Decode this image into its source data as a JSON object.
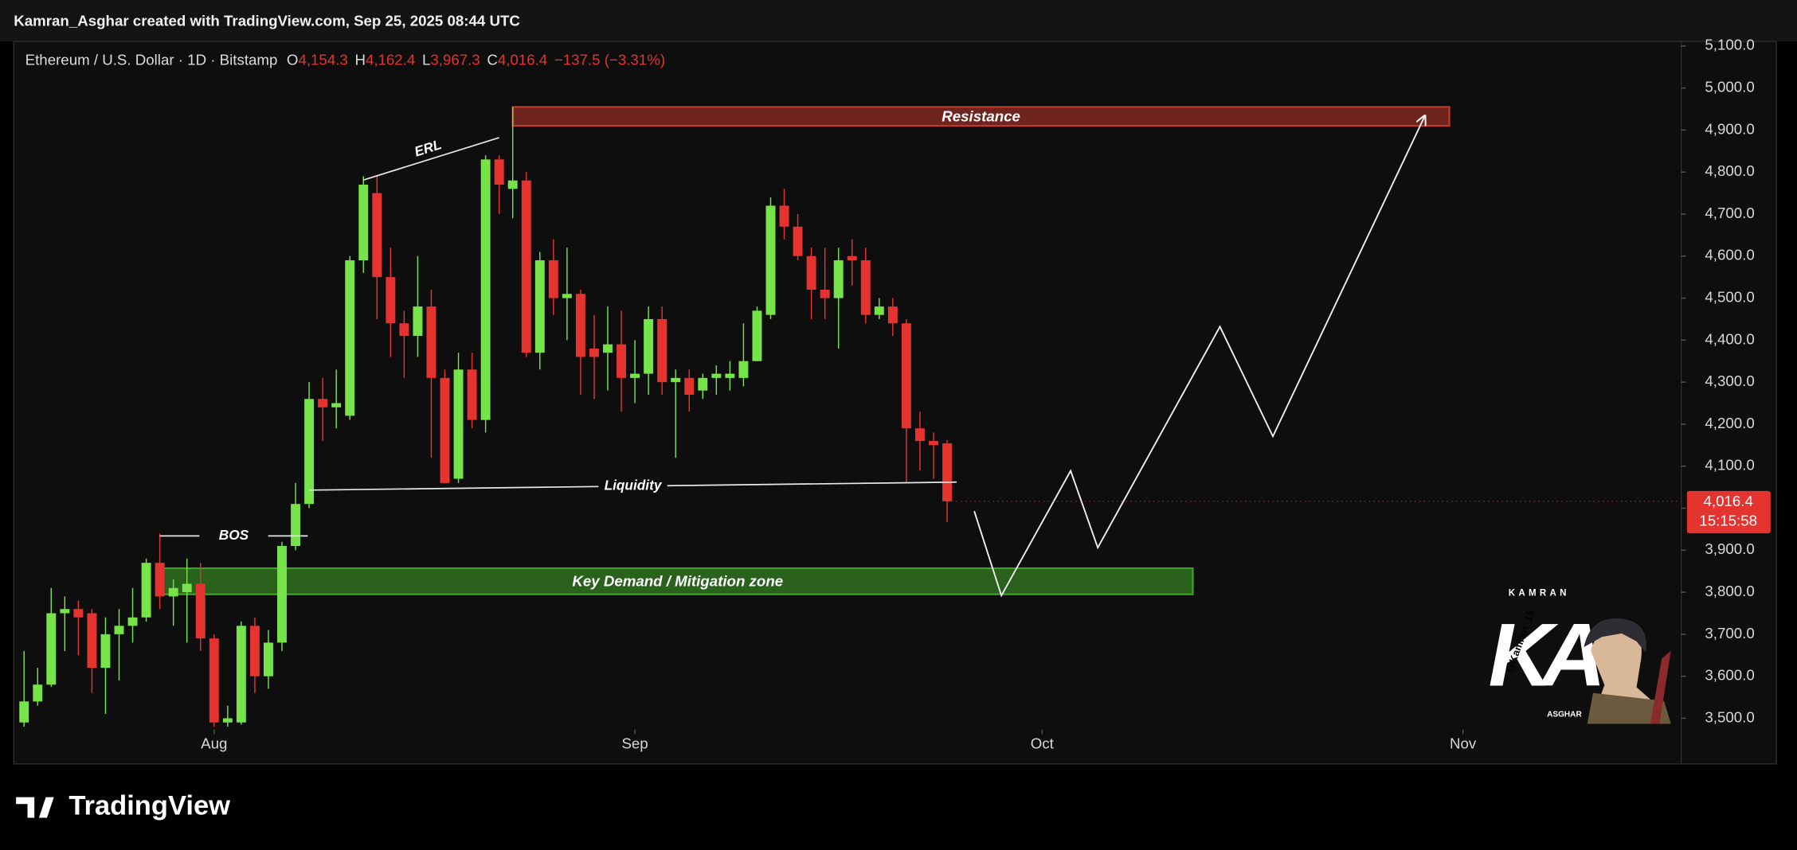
{
  "header": "Kamran_Asghar created with TradingView.com, Sep 25, 2025 08:44 UTC",
  "brand": "TradingView",
  "chart_data": {
    "type": "candlestick",
    "symbol": "Ethereum / U.S. Dollar · 1D · Bitstamp",
    "ohlc": [
      {
        "key": "O",
        "value": 4154.3,
        "label": "4,154.3"
      },
      {
        "key": "H",
        "value": 4162.4,
        "label": "4,162.4"
      },
      {
        "key": "L",
        "value": 3967.3,
        "label": "3,967.3"
      },
      {
        "key": "C",
        "value": 4016.4,
        "label": "4,016.4"
      }
    ],
    "change": "−137.5 (−3.31%)",
    "up_color": "#76e34b",
    "down_color": "#e5332f",
    "open": [
      3490,
      3540,
      3580,
      3750,
      3760,
      3750,
      3620,
      3700,
      3720,
      3740,
      3870,
      3790,
      3800,
      3820,
      3690,
      3490,
      3490,
      3720,
      3600,
      3680,
      3910,
      4010,
      4260,
      4240,
      4220,
      4590,
      4750,
      4550,
      4440,
      4410,
      4480,
      4310,
      4070,
      4330,
      4210,
      4830,
      4760,
      4780,
      4370,
      4590,
      4500,
      4510,
      4380,
      4370,
      4390,
      4310,
      4320,
      4450,
      4300,
      4310,
      4280,
      4310,
      4310,
      4310,
      4350,
      4460,
      4720,
      4670,
      4600,
      4520,
      4500,
      4600,
      4590,
      4460,
      4480,
      4440,
      4190,
      4160,
      4154.3
    ],
    "high": [
      3660,
      3620,
      3810,
      3790,
      3780,
      3760,
      3740,
      3760,
      3810,
      3880,
      3940,
      3830,
      3880,
      3870,
      3700,
      3530,
      3730,
      3740,
      3710,
      3920,
      4060,
      4300,
      4310,
      4330,
      4600,
      4790,
      4790,
      4620,
      4470,
      4600,
      4520,
      4330,
      4370,
      4370,
      4840,
      4840,
      4955,
      4800,
      4610,
      4640,
      4620,
      4520,
      4460,
      4480,
      4470,
      4400,
      4480,
      4480,
      4330,
      4330,
      4320,
      4340,
      4350,
      4440,
      4480,
      4740,
      4760,
      4700,
      4620,
      4620,
      4620,
      4640,
      4620,
      4500,
      4500,
      4450,
      4230,
      4180,
      4162.4
    ],
    "low": [
      3480,
      3530,
      3575,
      3660,
      3650,
      3560,
      3510,
      3590,
      3680,
      3730,
      3760,
      3720,
      3680,
      3660,
      3480,
      3480,
      3485,
      3560,
      3570,
      3660,
      3900,
      4000,
      4160,
      4190,
      4210,
      4560,
      4450,
      4360,
      4310,
      4360,
      4120,
      4060,
      4060,
      4190,
      4180,
      4700,
      4690,
      4360,
      4330,
      4460,
      4400,
      4270,
      4260,
      4280,
      4230,
      4250,
      4270,
      4270,
      4120,
      4230,
      4260,
      4270,
      4280,
      4290,
      4350,
      4450,
      4640,
      4590,
      4450,
      4450,
      4380,
      4530,
      4440,
      4450,
      4410,
      4060,
      4090,
      4070,
      3967.3
    ],
    "close": [
      3540,
      3580,
      3750,
      3760,
      3740,
      3620,
      3700,
      3720,
      3740,
      3870,
      3790,
      3810,
      3820,
      3690,
      3490,
      3500,
      3720,
      3600,
      3680,
      3910,
      4010,
      4260,
      4240,
      4250,
      4590,
      4770,
      4550,
      4440,
      4410,
      4480,
      4310,
      4060,
      4330,
      4210,
      4830,
      4770,
      4780,
      4370,
      4590,
      4500,
      4510,
      4360,
      4360,
      4390,
      4310,
      4320,
      4450,
      4300,
      4310,
      4270,
      4310,
      4320,
      4320,
      4350,
      4470,
      4720,
      4670,
      4600,
      4520,
      4500,
      4590,
      4590,
      4460,
      4480,
      4440,
      4190,
      4160,
      4150,
      4016.4
    ],
    "xlim": [
      -0.76,
      122
    ],
    "xticks": [
      {
        "value": 14,
        "label": "Aug"
      },
      {
        "value": 45,
        "label": "Sep"
      },
      {
        "value": 75,
        "label": "Oct"
      },
      {
        "value": 106,
        "label": "Nov"
      }
    ],
    "ylim": [
      3473,
      5111
    ],
    "yticks": [
      {
        "value": 3500,
        "label": "3,500.0"
      },
      {
        "value": 3600,
        "label": "3,600.0"
      },
      {
        "value": 3700,
        "label": "3,700.0"
      },
      {
        "value": 3800,
        "label": "3,800.0"
      },
      {
        "value": 3900,
        "label": "3,900.0"
      },
      {
        "value": 4000,
        "label": "4,000.0"
      },
      {
        "value": 4100,
        "label": "4,100.0"
      },
      {
        "value": 4200,
        "label": "4,200.0"
      },
      {
        "value": 4300,
        "label": "4,300.0"
      },
      {
        "value": 4400,
        "label": "4,400.0"
      },
      {
        "value": 4500,
        "label": "4,500.0"
      },
      {
        "value": 4600,
        "label": "4,600.0"
      },
      {
        "value": 4700,
        "label": "4,700.0"
      },
      {
        "value": 4800,
        "label": "4,800.0"
      },
      {
        "value": 4900,
        "label": "4,900.0"
      },
      {
        "value": 5000,
        "label": "5,000.0"
      },
      {
        "value": 5100,
        "label": "5,100.0"
      }
    ],
    "grid": false,
    "last_price": {
      "value": 4016.4,
      "label": "4,016.4"
    },
    "countdown": "15:15:58",
    "zones": [
      {
        "text": "Resistance",
        "x": [
          36,
          105
        ],
        "y": [
          4910,
          4955
        ],
        "color": "#c0392b"
      },
      {
        "text": "Key Demand / Mitigation zone",
        "x": [
          10.2,
          86.1
        ],
        "y": [
          3795,
          3857
        ],
        "color": "#3fa52a"
      }
    ],
    "lines": [
      {
        "text": "BOS",
        "x": [
          10,
          20.9
        ],
        "y": [
          3934,
          3934
        ]
      },
      {
        "text": "Liquidity",
        "x": [
          21,
          68.7
        ],
        "y": [
          4043,
          4062
        ]
      },
      {
        "text": "ERL",
        "x": [
          25,
          35
        ],
        "y": [
          4781,
          4882
        ]
      }
    ],
    "projection": {
      "x": [
        70,
        72,
        77.1,
        79.1,
        88.1,
        92,
        103.2
      ],
      "y": [
        3993,
        3792,
        4089,
        3906,
        4432,
        4171,
        4934
      ]
    }
  },
  "watermark": {
    "top": "KAMRAN",
    "logo": "KA",
    "handle": "@Kamran_15",
    "bottom": "ASGHAR"
  }
}
